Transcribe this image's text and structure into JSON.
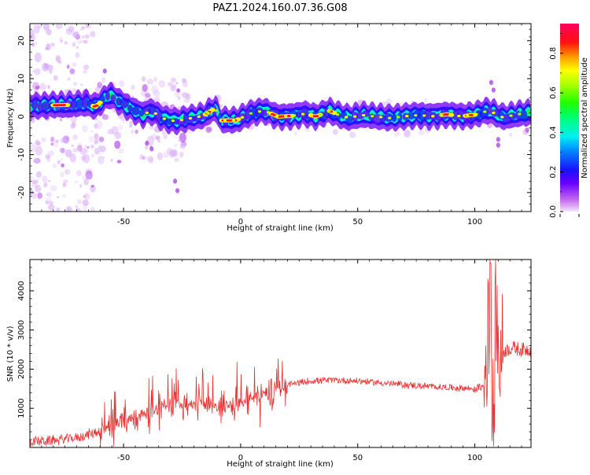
{
  "title": "PAZ1.2024.160.07.36.G08",
  "chart_data": [
    {
      "type": "heatmap",
      "xlabel": "Height of straight line (km)",
      "ylabel": "Frequency (Hz)",
      "xlim": [
        -90,
        124
      ],
      "ylim": [
        -25,
        24.5
      ],
      "xticks": [
        -50,
        0,
        50,
        100
      ],
      "yticks": [
        -20,
        -10,
        0,
        10,
        20
      ],
      "colorbar": {
        "label": "Normalized spectral amplitude",
        "range": [
          0.0,
          0.95
        ],
        "ticks": [
          0.0,
          0.2,
          0.4,
          0.6,
          0.8
        ],
        "colormap": "gist_rainbow_r (violet → blue → cyan → green → yellow → red → pink)"
      },
      "ridge_frequency_hz": [
        [
          -88,
          2.8
        ],
        [
          -80,
          3.0
        ],
        [
          -72,
          3.1
        ],
        [
          -66,
          3.5
        ],
        [
          -62,
          2.6
        ],
        [
          -56,
          5.8
        ],
        [
          -52,
          4.0
        ],
        [
          -48,
          2.5
        ],
        [
          -42,
          0.5
        ],
        [
          -38,
          1.5
        ],
        [
          -33,
          -0.5
        ],
        [
          -28,
          -1.2
        ],
        [
          -22,
          -0.5
        ],
        [
          -16,
          0.2
        ],
        [
          -11,
          2.2
        ],
        [
          -8,
          -1.0
        ],
        [
          -2,
          -1.0
        ],
        [
          4,
          0.8
        ],
        [
          10,
          1.6
        ],
        [
          16,
          0.0
        ],
        [
          22,
          0.2
        ],
        [
          28,
          0.8
        ],
        [
          32,
          0.0
        ],
        [
          38,
          1.5
        ],
        [
          42,
          0.4
        ],
        [
          46,
          -0.3
        ],
        [
          52,
          0.4
        ],
        [
          58,
          0.0
        ],
        [
          64,
          -0.4
        ],
        [
          70,
          0.1
        ],
        [
          76,
          0.4
        ],
        [
          82,
          0.1
        ],
        [
          88,
          0.6
        ],
        [
          94,
          0.1
        ],
        [
          100,
          0.5
        ],
        [
          106,
          1.6
        ],
        [
          112,
          -0.2
        ],
        [
          118,
          0.6
        ],
        [
          124,
          1.0
        ]
      ],
      "peak_regions_km": [
        [
          -80,
          -74
        ],
        [
          -63,
          -60
        ],
        [
          -15,
          -12
        ],
        [
          -8,
          -1
        ],
        [
          13,
          22
        ],
        [
          30,
          34
        ],
        [
          38,
          40
        ],
        [
          86,
          90
        ],
        [
          96,
          100
        ]
      ],
      "grid": false
    },
    {
      "type": "line",
      "xlabel": "Height of straight line (km)",
      "ylabel": "SNR (10 * v/v)",
      "xlim": [
        -90,
        124
      ],
      "ylim": [
        0,
        4800
      ],
      "xticks": [
        -50,
        0,
        50,
        100
      ],
      "yticks": [
        1000,
        2000,
        3000,
        4000
      ],
      "color": "#e83030",
      "grid": false,
      "series": [
        {
          "x": [
            -90,
            -80,
            -70,
            -60,
            -55,
            -50,
            -45,
            -40,
            -35,
            -30,
            -25,
            -20,
            -15,
            -10,
            -5,
            0,
            5,
            10,
            15,
            20,
            25,
            30,
            40,
            50,
            60,
            70,
            80,
            90,
            100,
            104,
            106,
            107,
            108,
            109,
            110,
            112,
            116,
            120,
            124
          ],
          "values": [
            150,
            180,
            250,
            420,
            550,
            700,
            800,
            900,
            1000,
            1050,
            1150,
            1100,
            1100,
            1000,
            1100,
            1150,
            1250,
            1400,
            1500,
            1600,
            1650,
            1700,
            1720,
            1700,
            1650,
            1600,
            1560,
            1530,
            1500,
            1560,
            3200,
            2500,
            300,
            3800,
            2300,
            2450,
            2550,
            2500,
            2500
          ]
        }
      ]
    }
  ]
}
